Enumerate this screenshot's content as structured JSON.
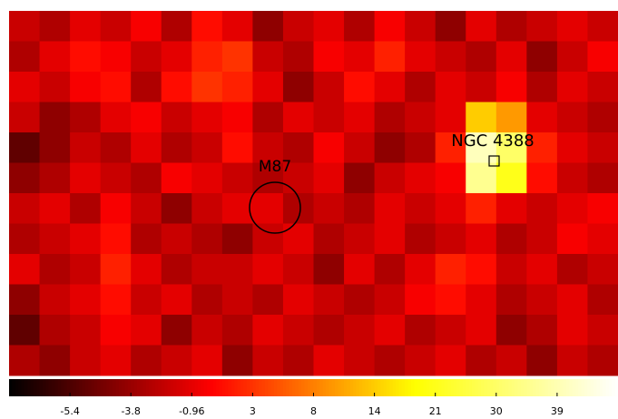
{
  "chart_data": {
    "type": "heatmap",
    "colormap": "heat",
    "values": [
      [
        -2,
        -3,
        -1,
        -2,
        0,
        -3,
        1,
        -1,
        -4,
        -2,
        -1,
        -3,
        0,
        -2,
        -4,
        -1,
        -3,
        -2,
        -1,
        -2
      ],
      [
        -3,
        -1,
        1,
        0,
        -2,
        -1,
        2,
        3,
        -2,
        -3,
        0,
        -1,
        2,
        -1,
        -2,
        -3,
        -1,
        -4,
        -2,
        0
      ],
      [
        -1,
        -2,
        0,
        1,
        -3,
        1,
        3,
        2,
        -1,
        -4,
        -2,
        1,
        -1,
        -3,
        -1,
        -2,
        0,
        -3,
        -1,
        -2
      ],
      [
        -2,
        -4,
        -3,
        -1,
        0,
        -2,
        -1,
        0,
        -3,
        -1,
        -2,
        -1,
        -3,
        -2,
        -1,
        14,
        10,
        -1,
        -2,
        -3
      ],
      [
        -5,
        -4,
        -2,
        -3,
        -1,
        -3,
        -2,
        1,
        -2,
        -3,
        0,
        -2,
        -4,
        -3,
        2,
        40,
        30,
        2,
        -1,
        -2
      ],
      [
        -4,
        -3,
        -1,
        -2,
        -3,
        0,
        -1,
        -2,
        -3,
        -2,
        -1,
        -4,
        -2,
        -1,
        0,
        35,
        21,
        1,
        -2,
        -3
      ],
      [
        -2,
        -1,
        -3,
        0,
        -2,
        -4,
        -2,
        -1,
        -1,
        -3,
        -2,
        -3,
        -1,
        -2,
        -1,
        2,
        -1,
        -2,
        -1,
        0
      ],
      [
        -3,
        -2,
        -1,
        1,
        -3,
        -2,
        -3,
        -4,
        -2,
        -1,
        -3,
        -2,
        -1,
        -3,
        -2,
        -1,
        -3,
        -2,
        0,
        -1
      ],
      [
        -1,
        -3,
        -2,
        2,
        -1,
        -3,
        -2,
        -2,
        -1,
        -2,
        -4,
        -1,
        -3,
        -1,
        2,
        1,
        -2,
        -1,
        -3,
        -2
      ],
      [
        -4,
        -2,
        -1,
        1,
        -2,
        -1,
        -3,
        -2,
        -3,
        -1,
        -2,
        -3,
        -2,
        0,
        1,
        -1,
        -3,
        -2,
        -1,
        -3
      ],
      [
        -5,
        -3,
        -2,
        0,
        -1,
        -4,
        -2,
        -3,
        -1,
        -2,
        -3,
        -2,
        -1,
        -3,
        -2,
        -1,
        -4,
        -3,
        -1,
        -2
      ],
      [
        -3,
        -4,
        -2,
        -1,
        -3,
        -2,
        -1,
        -4,
        -2,
        -3,
        -1,
        -2,
        -3,
        -2,
        -1,
        -3,
        -2,
        -4,
        -2,
        -3
      ]
    ],
    "annotations": [
      "M87",
      "NGC 4388"
    ],
    "zlim": [
      -6.6,
      47
    ],
    "zticks": [
      -5.4,
      -3.8,
      -0.96,
      3,
      8,
      14,
      21,
      30,
      39
    ]
  }
}
